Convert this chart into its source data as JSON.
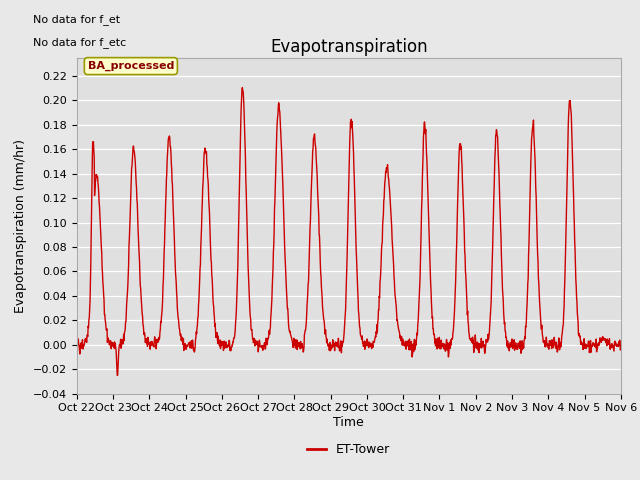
{
  "title": "Evapotranspiration",
  "ylabel": "Evapotranspiration (mm/hr)",
  "xlabel": "Time",
  "ylim": [
    -0.04,
    0.235
  ],
  "yticks": [
    -0.04,
    -0.02,
    0.0,
    0.02,
    0.04,
    0.06,
    0.08,
    0.1,
    0.12,
    0.14,
    0.16,
    0.18,
    0.2,
    0.22
  ],
  "line_color": "#cc0000",
  "line_width": 1.0,
  "bg_color": "#e8e8e8",
  "plot_bg_color": "#e0e0e0",
  "legend_label": "ET-Tower",
  "legend_box_color": "#ffffcc",
  "legend_box_edge": "#999900",
  "legend_text_color": "#880000",
  "no_data_text1": "No data for f_et",
  "no_data_text2": "No data for f_etc",
  "ba_processed_label": "BA_processed",
  "xtick_labels": [
    "Oct 22",
    "Oct 23",
    "Oct 24",
    "Oct 25",
    "Oct 26",
    "Oct 27",
    "Oct 28",
    "Oct 29",
    "Oct 30",
    "Oct 31",
    "Nov 1",
    "Nov 2",
    "Nov 3",
    "Nov 4",
    "Nov 5",
    "Nov 6"
  ],
  "title_fontsize": 12,
  "axis_fontsize": 9,
  "tick_fontsize": 8,
  "n_days": 15,
  "pts_per_day": 96,
  "day_peaks": [
    0.14,
    0.16,
    0.17,
    0.16,
    0.21,
    0.195,
    0.17,
    0.185,
    0.145,
    0.18,
    0.165,
    0.175,
    0.18,
    0.2,
    0.005
  ],
  "peak_hours": [
    13.0,
    13.5,
    13.0,
    13.0,
    13.5,
    13.5,
    13.0,
    13.5,
    13.0,
    14.0,
    13.5,
    13.5,
    13.5,
    14.0,
    12.0
  ],
  "rise_widths": [
    2.5,
    2.5,
    2.5,
    2.5,
    2.0,
    2.5,
    2.5,
    2.0,
    3.0,
    2.0,
    2.0,
    2.0,
    2.0,
    2.0,
    2.0
  ],
  "fall_widths": [
    3.0,
    3.0,
    3.0,
    3.0,
    2.5,
    3.0,
    3.0,
    2.5,
    3.5,
    2.5,
    2.5,
    2.5,
    2.5,
    2.5,
    2.5
  ]
}
